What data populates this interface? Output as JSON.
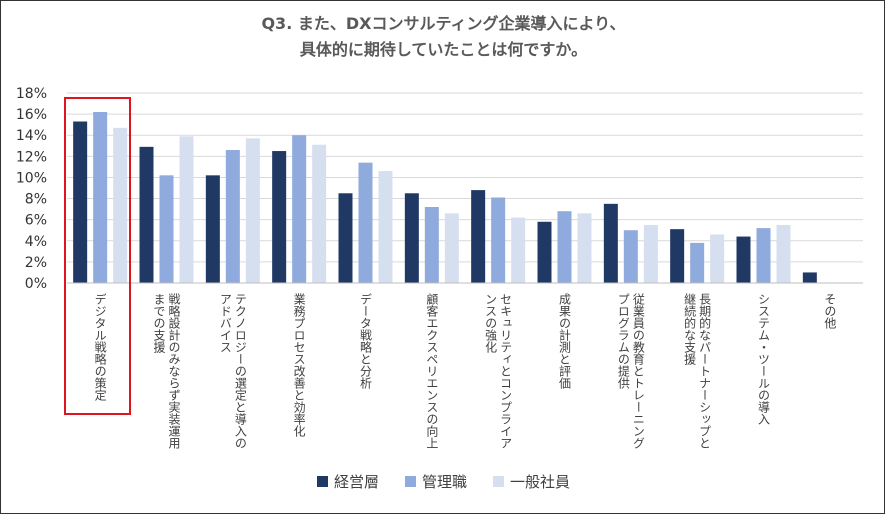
{
  "chart_data": {
    "type": "bar",
    "title": "Q3. また、DXコンサルティング企業導入により、\n具体的に期待していたことは何ですか。",
    "ylim": [
      0,
      18
    ],
    "yticks": [
      "0%",
      "2%",
      "4%",
      "6%",
      "8%",
      "10%",
      "12%",
      "14%",
      "16%",
      "18%"
    ],
    "grid": true,
    "legend_position": "bottom",
    "categories": [
      [
        "デジタル戦略の策定"
      ],
      [
        "戦略設計のみならず実装運用",
        "までの支援"
      ],
      [
        "テクノロジーの選定と導入の",
        "アドバイス"
      ],
      [
        "業務プロセス改善と効率化"
      ],
      [
        "データ戦略と分析"
      ],
      [
        "顧客エクスペリエンスの向上"
      ],
      [
        "セキュリティとコンプライア",
        "ンスの強化"
      ],
      [
        "成果の計測と評価"
      ],
      [
        "従業員の教育とトレーニング",
        "プログラムの提供"
      ],
      [
        "長期的なパートナーシップと",
        "継続的な支援"
      ],
      [
        "システム・ツールの導入"
      ],
      [
        "その他"
      ]
    ],
    "series": [
      {
        "name": "経営層",
        "color": "#203864",
        "values": [
          15.3,
          12.9,
          10.2,
          12.5,
          8.5,
          8.5,
          8.8,
          5.8,
          7.5,
          5.1,
          4.4,
          1.0
        ]
      },
      {
        "name": "管理職",
        "color": "#8faadc",
        "values": [
          16.2,
          10.2,
          12.6,
          14.0,
          11.4,
          7.2,
          8.1,
          6.8,
          5.0,
          3.8,
          5.2,
          0.0
        ]
      },
      {
        "name": "一般社員",
        "color": "#d6dff0",
        "values": [
          14.7,
          13.9,
          13.7,
          13.1,
          10.6,
          6.6,
          6.2,
          6.6,
          5.5,
          4.6,
          5.5,
          0.0
        ]
      }
    ],
    "highlighted_category": "デジタル戦略の策定",
    "highlight_color": "#e0141e"
  }
}
